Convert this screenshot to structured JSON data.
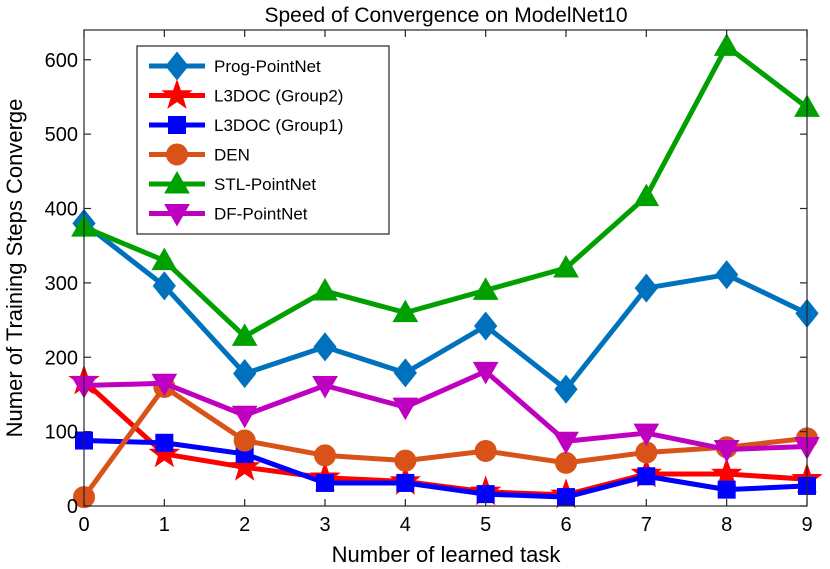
{
  "chart_data": {
    "type": "line",
    "title": "Speed of Convergence on ModelNet10",
    "xlabel": "Number of learned task",
    "ylabel": "Numer of Training Steps Converge",
    "x": [
      0,
      1,
      2,
      3,
      4,
      5,
      6,
      7,
      8,
      9
    ],
    "xlim": [
      0,
      9
    ],
    "ylim": [
      0,
      640
    ],
    "xticks": [
      0,
      1,
      2,
      3,
      4,
      5,
      6,
      7,
      8,
      9
    ],
    "yticks": [
      0,
      100,
      200,
      300,
      400,
      500,
      600
    ],
    "legend_position": "top-left",
    "series": [
      {
        "name": "Prog-PointNet",
        "color": "#0072BD",
        "marker": "diamond",
        "values": [
          380,
          296,
          178,
          214,
          179,
          242,
          157,
          293,
          311,
          259
        ]
      },
      {
        "name": "L3DOC (Group2)",
        "color": "#FF0000",
        "marker": "star",
        "values": [
          168,
          70,
          52,
          38,
          33,
          19,
          15,
          43,
          43,
          36
        ]
      },
      {
        "name": "L3DOC (Group1)",
        "color": "#0000FF",
        "marker": "square",
        "values": [
          88,
          85,
          70,
          31,
          31,
          16,
          12,
          40,
          22,
          27
        ]
      },
      {
        "name": "DEN",
        "color": "#D95319",
        "marker": "circle",
        "values": [
          12,
          160,
          88,
          68,
          61,
          74,
          58,
          72,
          79,
          91
        ]
      },
      {
        "name": "STL-PointNet",
        "color": "#00A000",
        "marker": "triangle-up",
        "values": [
          375,
          330,
          228,
          289,
          260,
          290,
          320,
          416,
          618,
          536
        ]
      },
      {
        "name": "DF-PointNet",
        "color": "#C000C0",
        "marker": "triangle-down",
        "values": [
          162,
          165,
          122,
          162,
          133,
          181,
          87,
          98,
          76,
          80
        ]
      }
    ]
  }
}
